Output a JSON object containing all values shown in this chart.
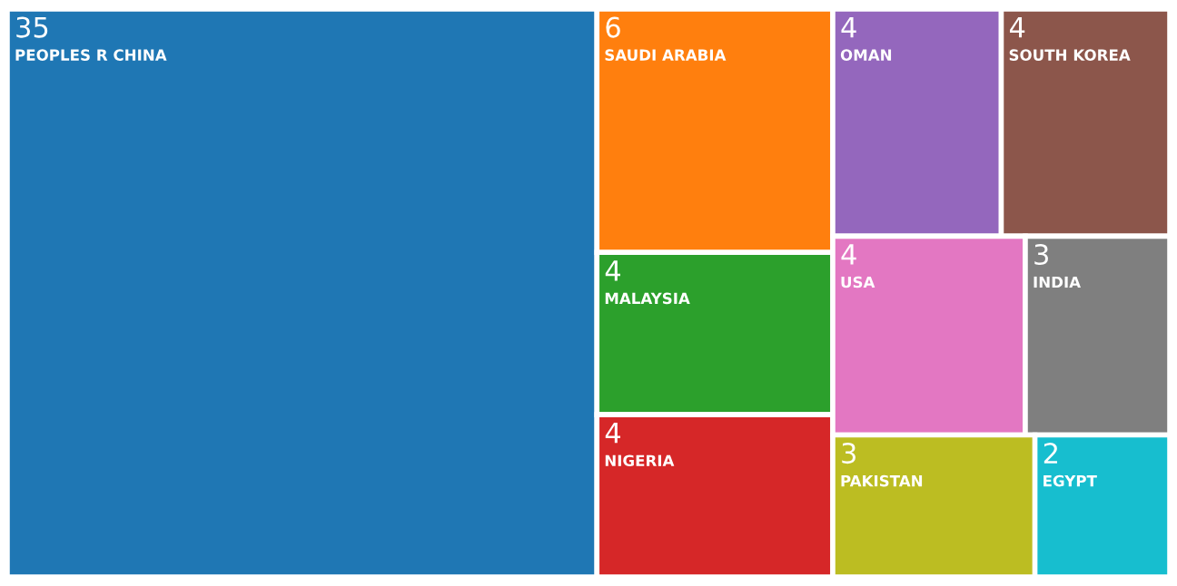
{
  "chart_data": {
    "type": "other",
    "data_labels": true,
    "categories": [
      "PEOPLES R CHINA",
      "SAUDI ARABIA",
      "MALAYSIA",
      "NIGERIA",
      "OMAN",
      "SOUTH KOREA",
      "USA",
      "INDIA",
      "PAKISTAN",
      "EGYPT"
    ],
    "values": [
      35,
      6,
      4,
      4,
      4,
      4,
      4,
      3,
      3,
      2
    ],
    "colors": [
      "#1f77b4",
      "#ff7f0e",
      "#2ca02c",
      "#d62728",
      "#9467bd",
      "#8c564b",
      "#e377c2",
      "#7f7f7f",
      "#bcbd22",
      "#17becf"
    ]
  }
}
